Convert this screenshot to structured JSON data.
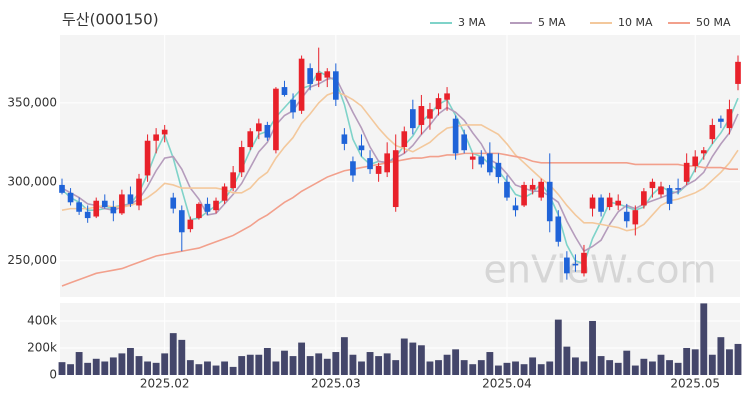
{
  "chart_data": {
    "type": "candlestick",
    "title": "두산(000150)",
    "watermark": "enVieW.com",
    "categories": [
      null,
      null,
      null,
      null,
      null,
      null,
      null,
      null,
      null,
      null,
      null,
      null,
      "2025.02",
      null,
      null,
      null,
      null,
      null,
      null,
      null,
      null,
      null,
      null,
      null,
      null,
      null,
      null,
      null,
      null,
      null,
      null,
      null,
      "2025.03",
      null,
      null,
      null,
      null,
      null,
      null,
      null,
      null,
      null,
      null,
      null,
      null,
      null,
      null,
      null,
      null,
      null,
      null,
      null,
      "2025.04",
      null,
      null,
      null,
      null,
      null,
      null,
      null,
      null,
      null,
      null,
      null,
      null,
      null,
      null,
      null,
      null,
      null,
      null,
      null,
      null,
      null,
      "2025.05",
      null,
      null,
      null,
      null,
      null
    ],
    "open": [
      298000,
      293000,
      287000,
      281000,
      278000,
      288000,
      284000,
      280000,
      292000,
      285000,
      304000,
      326000,
      330000,
      290000,
      282000,
      270000,
      277000,
      286000,
      282000,
      288000,
      296000,
      306000,
      322000,
      332000,
      336000,
      320000,
      360000,
      352000,
      345000,
      372000,
      364000,
      366000,
      370000,
      330000,
      313000,
      323000,
      315000,
      305000,
      306000,
      284000,
      322000,
      346000,
      336000,
      340000,
      346000,
      352000,
      340000,
      330000,
      314000,
      316000,
      318000,
      312000,
      300000,
      285000,
      285000,
      295000,
      290000,
      300000,
      278000,
      252000,
      248000,
      242000,
      283000,
      290000,
      284000,
      285000,
      281000,
      273000,
      285000,
      296000,
      292000,
      296000,
      296000,
      300000,
      310000,
      318000,
      327000,
      340000,
      334000,
      362000
    ],
    "high": [
      302000,
      296000,
      290000,
      285000,
      290000,
      292000,
      288000,
      295000,
      297000,
      305000,
      330000,
      334000,
      336000,
      293000,
      285000,
      278000,
      287000,
      290000,
      290000,
      299000,
      310000,
      326000,
      334000,
      340000,
      338000,
      360000,
      364000,
      356000,
      380000,
      375000,
      385000,
      372000,
      375000,
      334000,
      316000,
      330000,
      320000,
      312000,
      325000,
      330000,
      335000,
      352000,
      355000,
      350000,
      356000,
      360000,
      342000,
      333000,
      318000,
      320000,
      325000,
      318000,
      304000,
      290000,
      300000,
      302000,
      302000,
      318000,
      282000,
      256000,
      254000,
      260000,
      292000,
      292000,
      293000,
      292000,
      286000,
      285000,
      296000,
      302000,
      300000,
      298000,
      302000,
      318000,
      320000,
      322000,
      340000,
      342000,
      352000,
      380000
    ],
    "low": [
      292000,
      285000,
      279000,
      274000,
      277000,
      283000,
      275000,
      279000,
      284000,
      282000,
      300000,
      318000,
      325000,
      280000,
      256000,
      268000,
      276000,
      279000,
      280000,
      286000,
      294000,
      303000,
      320000,
      327000,
      326000,
      318000,
      354000,
      340000,
      343000,
      358000,
      360000,
      360000,
      348000,
      320000,
      300000,
      316000,
      305000,
      300000,
      303000,
      281000,
      318000,
      330000,
      330000,
      333000,
      342000,
      345000,
      314000,
      318000,
      308000,
      309000,
      304000,
      299000,
      288000,
      278000,
      284000,
      292000,
      288000,
      268000,
      259000,
      238000,
      243000,
      240000,
      278000,
      278000,
      282000,
      282000,
      271000,
      266000,
      283000,
      290000,
      290000,
      282000,
      292000,
      298000,
      306000,
      314000,
      324000,
      334000,
      330000,
      358000
    ],
    "close": [
      293000,
      287000,
      281000,
      277000,
      288000,
      284000,
      280000,
      292000,
      286000,
      302000,
      326000,
      330000,
      333000,
      283000,
      268000,
      276000,
      286000,
      281000,
      288000,
      297000,
      306000,
      322000,
      332000,
      337000,
      328000,
      359000,
      355000,
      344000,
      378000,
      362000,
      369000,
      370000,
      352000,
      324000,
      304000,
      320000,
      308000,
      310000,
      318000,
      320000,
      332000,
      334000,
      348000,
      346000,
      353000,
      356000,
      318000,
      320000,
      316000,
      311000,
      306000,
      303000,
      290000,
      282000,
      298000,
      298000,
      300000,
      275000,
      262000,
      242000,
      247000,
      255000,
      290000,
      281000,
      290000,
      288000,
      275000,
      282000,
      294000,
      300000,
      297000,
      286000,
      295000,
      312000,
      316000,
      320000,
      336000,
      338000,
      346000,
      376000
    ],
    "up_color": "#e8212a",
    "down_color": "#1f63d8",
    "ylim": [
      227000,
      393000
    ],
    "yticks": [
      {
        "value": 250000,
        "label": "250,000"
      },
      {
        "value": 300000,
        "label": "300,000"
      },
      {
        "value": 350000,
        "label": "350,000"
      }
    ],
    "grid": true,
    "series": [
      {
        "name": "3 MA",
        "color": "#7fd3c9",
        "values": [
          295000,
          290000,
          287000,
          282000,
          282000,
          283000,
          284000,
          285000,
          286000,
          293000,
          305000,
          319000,
          330000,
          315000,
          295000,
          276000,
          277000,
          281000,
          285000,
          289000,
          297000,
          308000,
          320000,
          330000,
          332000,
          341000,
          347000,
          353000,
          359000,
          361000,
          370000,
          367000,
          364000,
          349000,
          327000,
          316000,
          311000,
          313000,
          312000,
          316000,
          323000,
          329000,
          338000,
          343000,
          349000,
          352000,
          342000,
          331000,
          318000,
          316000,
          311000,
          307000,
          300000,
          292000,
          290000,
          293000,
          299000,
          291000,
          279000,
          260000,
          250000,
          248000,
          264000,
          275000,
          287000,
          286000,
          284000,
          282000,
          284000,
          292000,
          297000,
          294000,
          293000,
          298000,
          308000,
          316000,
          324000,
          331000,
          340000,
          353000
        ]
      },
      {
        "name": "5 MA",
        "color": "#b59cbc",
        "values": [
          296000,
          293000,
          290000,
          286000,
          285000,
          283000,
          282000,
          284000,
          286000,
          289000,
          297000,
          307000,
          315000,
          316000,
          308000,
          296000,
          289000,
          279000,
          280000,
          286000,
          292000,
          299000,
          309000,
          319000,
          325000,
          336000,
          342000,
          345000,
          353000,
          360000,
          362000,
          365000,
          366000,
          355000,
          344000,
          334000,
          322000,
          313000,
          312000,
          315000,
          318000,
          323000,
          330000,
          336000,
          343000,
          347000,
          344000,
          339000,
          331000,
          324000,
          314000,
          311000,
          305000,
          298000,
          296000,
          294000,
          294000,
          291000,
          287000,
          275000,
          265000,
          256000,
          259000,
          263000,
          273000,
          281000,
          285000,
          283000,
          286000,
          288000,
          290000,
          292000,
          294000,
          298000,
          301000,
          306000,
          316000,
          324000,
          331000,
          343000
        ]
      },
      {
        "name": "10 MA",
        "color": "#f3c89c",
        "values": [
          282000,
          283000,
          283000,
          283000,
          284000,
          285000,
          284000,
          284000,
          285000,
          287000,
          290000,
          294000,
          299000,
          298000,
          296000,
          296000,
          296000,
          296000,
          296000,
          295000,
          293000,
          293000,
          296000,
          302000,
          306000,
          315000,
          322000,
          328000,
          337000,
          343000,
          350000,
          355000,
          357000,
          355000,
          352000,
          348000,
          341000,
          334000,
          328000,
          323000,
          321000,
          319000,
          322000,
          325000,
          330000,
          334000,
          335000,
          336000,
          336000,
          336000,
          333000,
          330000,
          324000,
          317000,
          312000,
          307000,
          302000,
          298000,
          292000,
          285000,
          279000,
          274000,
          274000,
          273000,
          272000,
          271000,
          269000,
          270000,
          273000,
          279000,
          285000,
          288000,
          289000,
          291000,
          293000,
          296000,
          301000,
          306000,
          312000,
          320000
        ]
      },
      {
        "name": "50 MA",
        "color": "#f2a08c",
        "values": [
          234000,
          236000,
          238000,
          240000,
          242000,
          243000,
          244000,
          245000,
          247000,
          249000,
          251000,
          253000,
          254000,
          255000,
          256000,
          257000,
          258000,
          260000,
          262000,
          264000,
          266000,
          269000,
          272000,
          276000,
          279000,
          283000,
          287000,
          290000,
          294000,
          297000,
          300000,
          303000,
          305000,
          307000,
          308000,
          309000,
          310000,
          311000,
          312000,
          313000,
          314000,
          315000,
          315000,
          316000,
          316000,
          317000,
          317000,
          318000,
          318000,
          318000,
          318000,
          318000,
          317000,
          316000,
          315000,
          313000,
          312000,
          312000,
          312000,
          312000,
          312000,
          312000,
          312000,
          312000,
          312000,
          312000,
          312000,
          311000,
          311000,
          311000,
          311000,
          311000,
          311000,
          310000,
          310000,
          309000,
          309000,
          309000,
          308000,
          308000
        ]
      }
    ],
    "volume": {
      "color": "#44466a",
      "values": [
        95000,
        80000,
        170000,
        90000,
        120000,
        100000,
        130000,
        160000,
        200000,
        140000,
        100000,
        90000,
        160000,
        310000,
        260000,
        110000,
        80000,
        100000,
        70000,
        100000,
        60000,
        140000,
        150000,
        150000,
        200000,
        100000,
        180000,
        140000,
        240000,
        140000,
        160000,
        120000,
        170000,
        280000,
        150000,
        100000,
        170000,
        140000,
        160000,
        110000,
        270000,
        240000,
        220000,
        100000,
        110000,
        150000,
        190000,
        110000,
        80000,
        110000,
        170000,
        70000,
        90000,
        100000,
        80000,
        130000,
        80000,
        100000,
        410000,
        210000,
        130000,
        100000,
        400000,
        140000,
        110000,
        90000,
        180000,
        70000,
        120000,
        100000,
        150000,
        110000,
        90000,
        200000,
        190000,
        530000,
        150000,
        280000,
        190000,
        230000
      ],
      "ylim": [
        0,
        533000
      ],
      "yticks": [
        0,
        {
          "value": 200000,
          "label": "200k"
        },
        {
          "value": 400000,
          "label": "400k"
        }
      ]
    }
  }
}
